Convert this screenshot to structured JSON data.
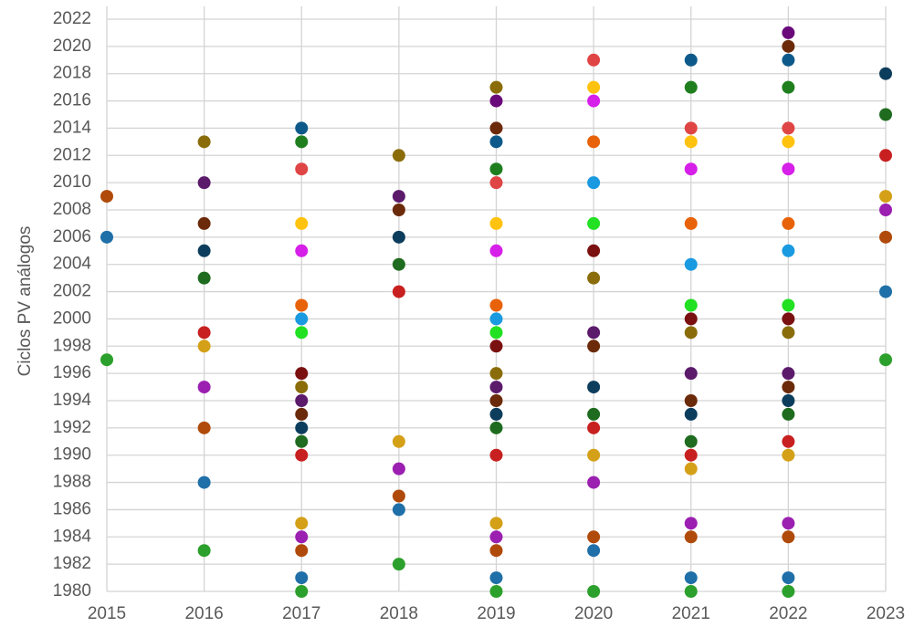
{
  "chart_data": {
    "type": "scatter",
    "y_label": "Ciclos PV análogos",
    "x": [
      2015,
      2015,
      2015,
      2016,
      2016,
      2016,
      2016,
      2016,
      2016,
      2016,
      2016,
      2016,
      2016,
      2016,
      2017,
      2017,
      2017,
      2017,
      2017,
      2017,
      2017,
      2017,
      2017,
      2017,
      2017,
      2017,
      2017,
      2017,
      2017,
      2017,
      2017,
      2017,
      2017,
      2017,
      2018,
      2018,
      2018,
      2018,
      2018,
      2018,
      2018,
      2018,
      2018,
      2018,
      2018,
      2019,
      2019,
      2019,
      2019,
      2019,
      2019,
      2019,
      2019,
      2019,
      2019,
      2019,
      2019,
      2019,
      2019,
      2019,
      2019,
      2019,
      2019,
      2019,
      2019,
      2019,
      2019,
      2019,
      2020,
      2020,
      2020,
      2020,
      2020,
      2020,
      2020,
      2020,
      2020,
      2020,
      2020,
      2020,
      2020,
      2020,
      2020,
      2020,
      2020,
      2020,
      2021,
      2021,
      2021,
      2021,
      2021,
      2021,
      2021,
      2021,
      2021,
      2021,
      2021,
      2021,
      2021,
      2021,
      2021,
      2021,
      2021,
      2021,
      2021,
      2021,
      2022,
      2022,
      2022,
      2022,
      2022,
      2022,
      2022,
      2022,
      2022,
      2022,
      2022,
      2022,
      2022,
      2022,
      2022,
      2022,
      2022,
      2022,
      2022,
      2022,
      2022,
      2022,
      2023,
      2023,
      2023,
      2023,
      2023,
      2023,
      2023,
      2023
    ],
    "y": [
      2009,
      2006,
      1997,
      2013,
      2010,
      2007,
      2005,
      2003,
      1999,
      1998,
      1995,
      1992,
      1988,
      1983,
      2014,
      2013,
      2011,
      2007,
      2005,
      2001,
      2000,
      1999,
      1996,
      1995,
      1994,
      1993,
      1992,
      1991,
      1990,
      1985,
      1984,
      1983,
      1981,
      1980,
      2012,
      2009,
      2008,
      2006,
      2004,
      2002,
      1991,
      1989,
      1987,
      1986,
      1982,
      2017,
      2016,
      2014,
      2013,
      2011,
      2010,
      2007,
      2005,
      2001,
      2000,
      1999,
      1998,
      1996,
      1995,
      1994,
      1993,
      1992,
      1990,
      1985,
      1984,
      1983,
      1981,
      1980,
      2019,
      2017,
      2016,
      2013,
      2010,
      2007,
      2005,
      2003,
      1999,
      1998,
      1995,
      1993,
      1992,
      1990,
      1988,
      1984,
      1983,
      1980,
      2019,
      2017,
      2014,
      2013,
      2011,
      2007,
      2004,
      2001,
      2000,
      1999,
      1996,
      1994,
      1993,
      1991,
      1990,
      1989,
      1985,
      1984,
      1981,
      1980,
      2021,
      2020,
      2019,
      2017,
      2014,
      2013,
      2011,
      2007,
      2005,
      2001,
      2000,
      1999,
      1996,
      1995,
      1994,
      1993,
      1991,
      1990,
      1985,
      1984,
      1981,
      1980,
      2018,
      2015,
      2012,
      2009,
      2008,
      2006,
      2002,
      1997
    ],
    "colors": [
      "#b04a0a",
      "#1f6fa8",
      "#2ca02c",
      "#8a6d0a",
      "#5c1a6b",
      "#6b2a0a",
      "#0d3d5c",
      "#1f6b1f",
      "#c82020",
      "#d4a017",
      "#9b1fb0",
      "#b04a0a",
      "#1f6fa8",
      "#2ca02c",
      "#0d5a8a",
      "#1f7f1f",
      "#e04545",
      "#ffc20e",
      "#d61fe8",
      "#e8620a",
      "#1a9ae0",
      "#22e022",
      "#7a1010",
      "#8a6d0a",
      "#5c1a6b",
      "#6b2a0a",
      "#0d3d5c",
      "#1f6b1f",
      "#c82020",
      "#d4a017",
      "#9b1fb0",
      "#b04a0a",
      "#1f6fa8",
      "#2ca02c",
      "#8a6d0a",
      "#5c1a6b",
      "#6b2a0a",
      "#0d3d5c",
      "#1f6b1f",
      "#c82020",
      "#d4a017",
      "#9b1fb0",
      "#b04a0a",
      "#1f6fa8",
      "#2ca02c",
      "#8a6d0a",
      "#6a0a7a",
      "#6b2a0a",
      "#0d5a8a",
      "#1f7f1f",
      "#e04545",
      "#ffc20e",
      "#d61fe8",
      "#e8620a",
      "#1a9ae0",
      "#22e022",
      "#7a1010",
      "#8a6d0a",
      "#5c1a6b",
      "#6b2a0a",
      "#0d3d5c",
      "#1f6b1f",
      "#c82020",
      "#d4a017",
      "#9b1fb0",
      "#b04a0a",
      "#1f6fa8",
      "#2ca02c",
      "#e04545",
      "#ffc20e",
      "#d61fe8",
      "#e8620a",
      "#1a9ae0",
      "#22e022",
      "#7a1010",
      "#8a6d0a",
      "#5c1a6b",
      "#6b2a0a",
      "#0d3d5c",
      "#1f6b1f",
      "#c82020",
      "#d4a017",
      "#9b1fb0",
      "#b04a0a",
      "#1f6fa8",
      "#2ca02c",
      "#0d5a8a",
      "#1f7f1f",
      "#e04545",
      "#ffc20e",
      "#d61fe8",
      "#e8620a",
      "#1a9ae0",
      "#22e022",
      "#7a1010",
      "#8a6d0a",
      "#5c1a6b",
      "#6b2a0a",
      "#0d3d5c",
      "#1f6b1f",
      "#c82020",
      "#d4a017",
      "#9b1fb0",
      "#b04a0a",
      "#1f6fa8",
      "#2ca02c",
      "#6a0a7a",
      "#6b2a0a",
      "#0d5a8a",
      "#1f7f1f",
      "#e04545",
      "#ffc20e",
      "#d61fe8",
      "#e8620a",
      "#1a9ae0",
      "#22e022",
      "#7a1010",
      "#8a6d0a",
      "#5c1a6b",
      "#6b2a0a",
      "#0d3d5c",
      "#1f6b1f",
      "#c82020",
      "#d4a017",
      "#9b1fb0",
      "#b04a0a",
      "#1f6fa8",
      "#2ca02c",
      "#0d3d5c",
      "#1f6b1f",
      "#c82020",
      "#d4a017",
      "#9b1fb0",
      "#b04a0a",
      "#1f6fa8",
      "#2ca02c"
    ],
    "xlim": [
      2015,
      2023
    ],
    "xticks": [
      2015,
      2016,
      2017,
      2018,
      2019,
      2020,
      2021,
      2022,
      2023
    ],
    "ylim": [
      1980,
      2022
    ],
    "yticks": [
      1980,
      1982,
      1984,
      1986,
      1988,
      1990,
      1992,
      1994,
      1996,
      1998,
      2000,
      2002,
      2004,
      2006,
      2008,
      2010,
      2012,
      2014,
      2016,
      2018,
      2020,
      2022
    ],
    "grid": true
  }
}
